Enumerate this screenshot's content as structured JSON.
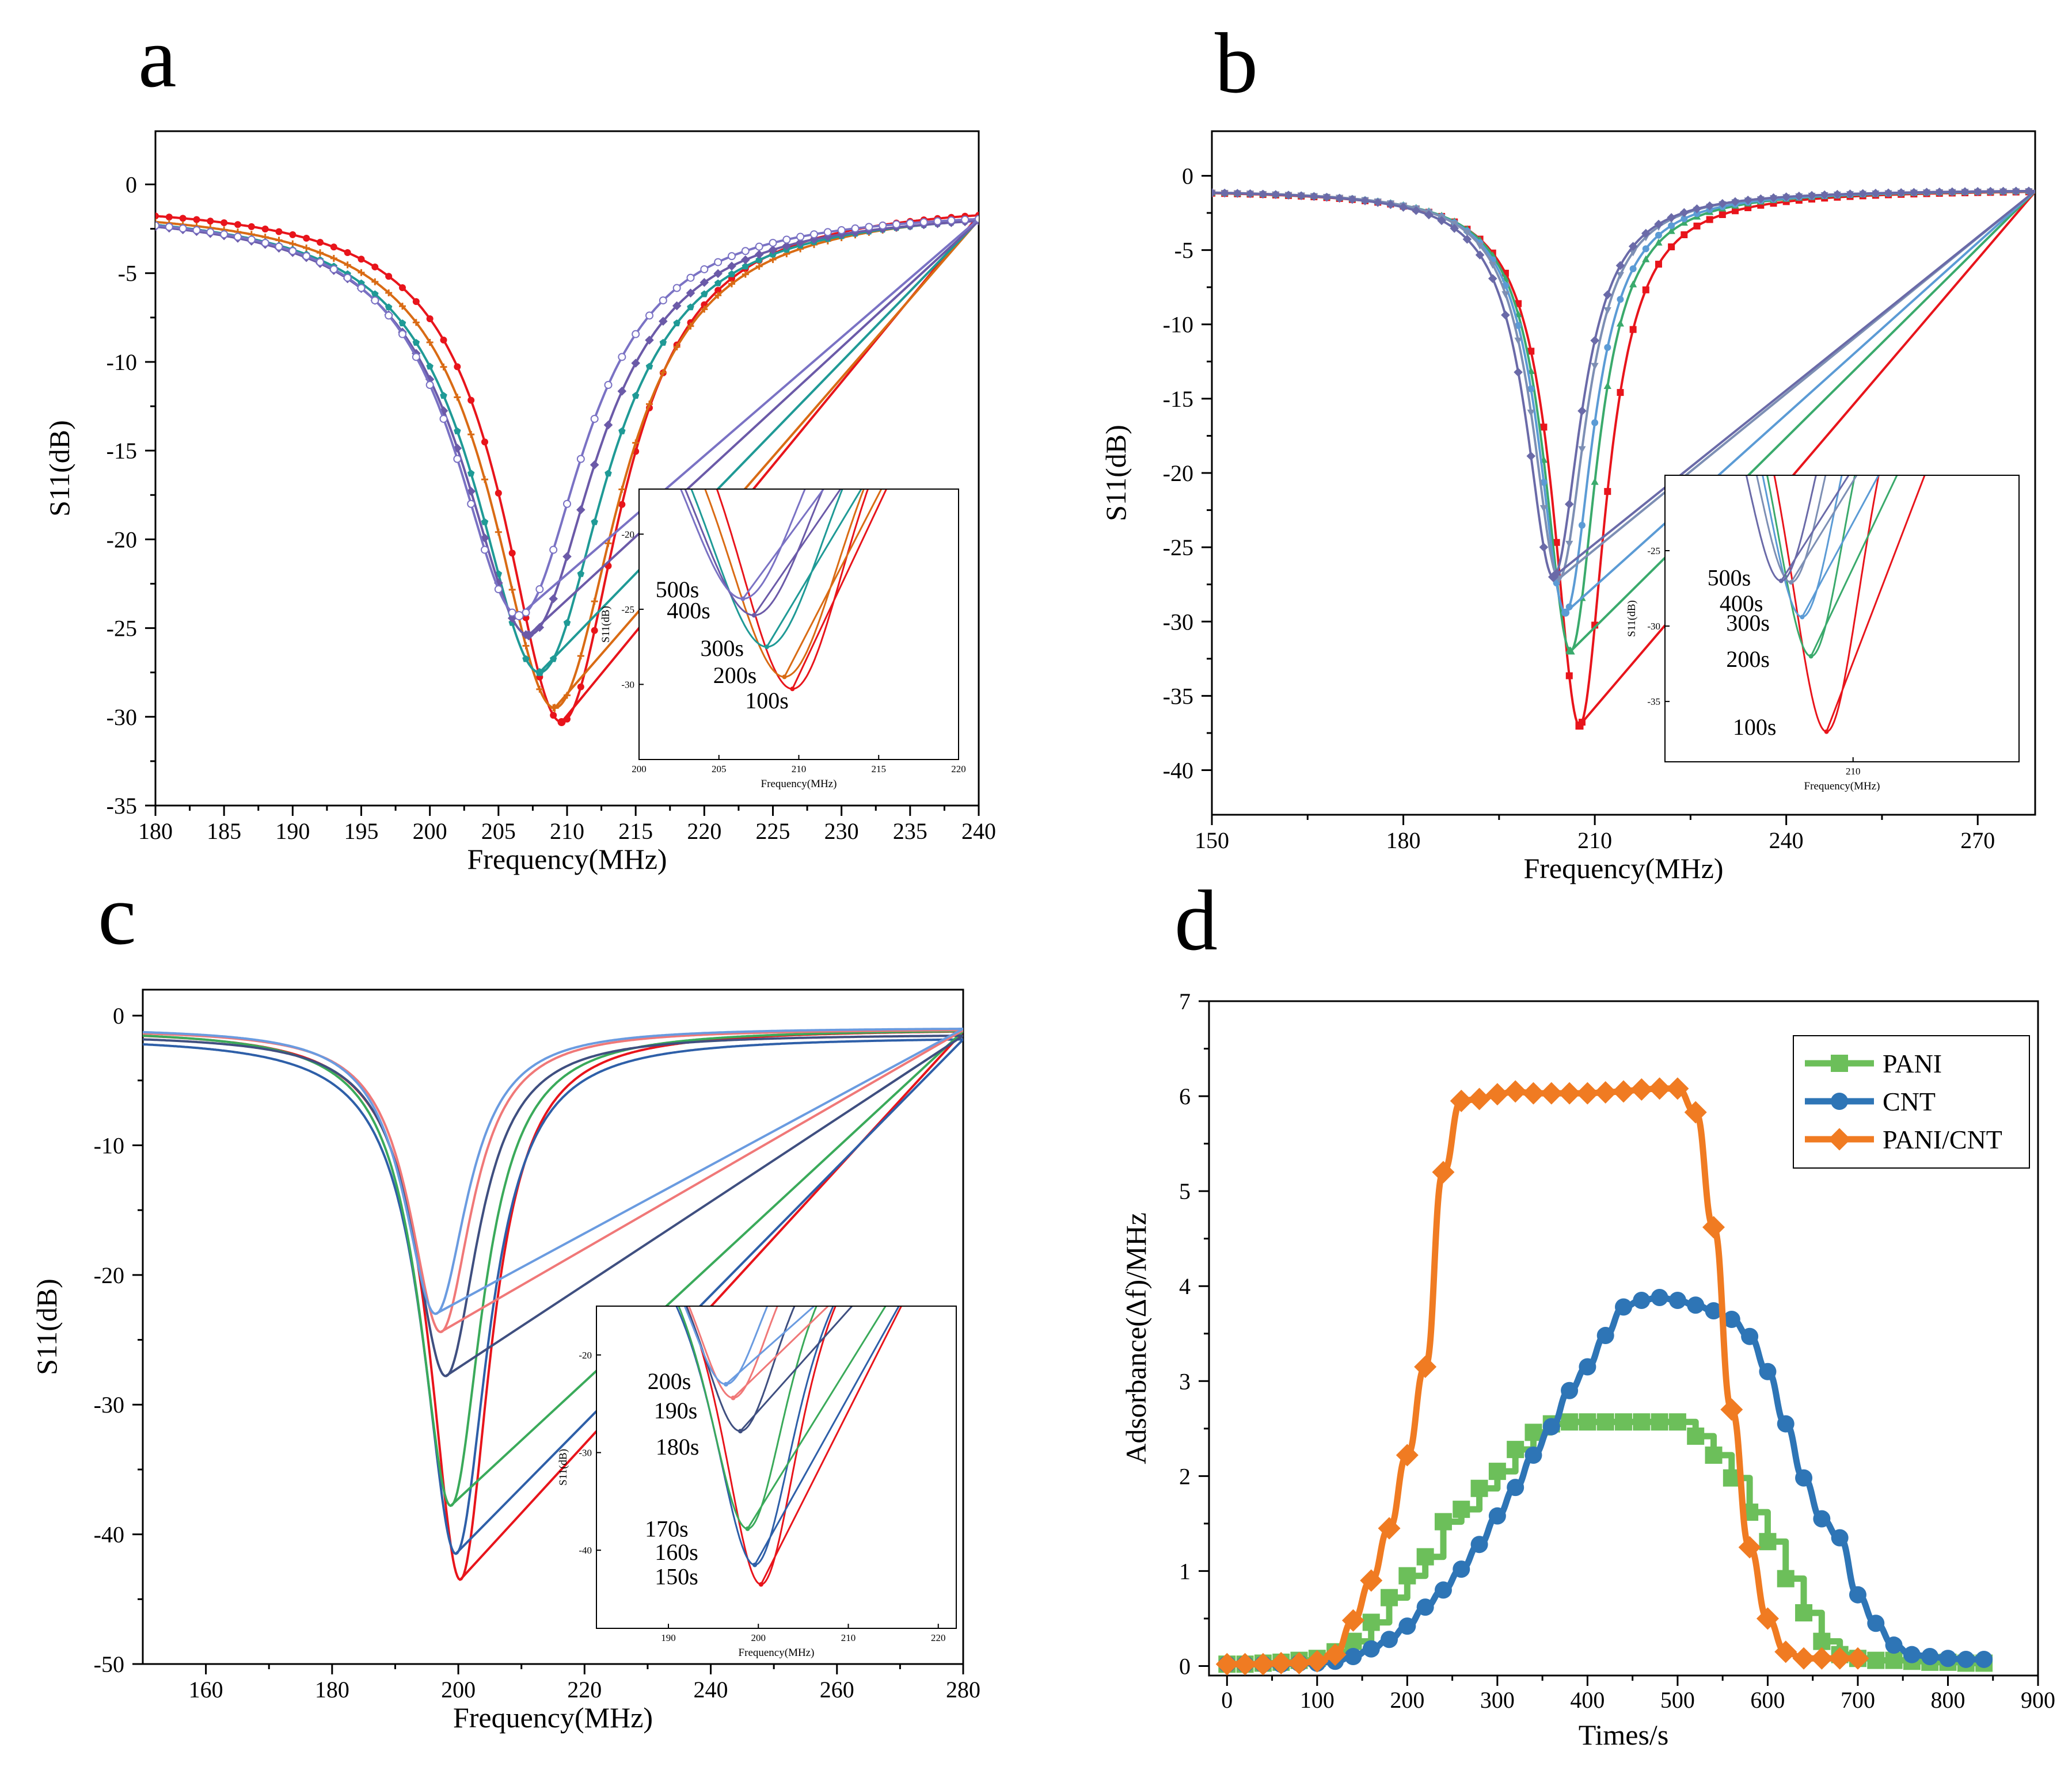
{
  "chart_data": [
    {
      "id": "a",
      "panel_label": "a",
      "type": "line",
      "xlabel": "Frequency(MHz)",
      "ylabel": "S11(dB)",
      "xlim": [
        180,
        240
      ],
      "ylim": [
        -35,
        3
      ],
      "xticks": [
        180,
        185,
        190,
        195,
        200,
        205,
        210,
        215,
        220,
        225,
        230,
        235,
        240
      ],
      "yticks": [
        0,
        -5,
        -10,
        -15,
        -20,
        -25,
        -30,
        -35
      ],
      "series": [
        {
          "name": "100s",
          "color": "#e8141b",
          "marker": "circle",
          "f0": 209.6,
          "min_db": -30.3,
          "half_width": 5.2,
          "baseline": -0.9
        },
        {
          "name": "200s",
          "color": "#d96b14",
          "marker": "plus",
          "f0": 209.1,
          "min_db": -29.5,
          "half_width": 5.6,
          "baseline": -1.1
        },
        {
          "name": "300s",
          "color": "#1f9a96",
          "marker": "pentagon",
          "f0": 208.0,
          "min_db": -27.5,
          "half_width": 5.8,
          "baseline": -1.2
        },
        {
          "name": "400s",
          "color": "#6b5aa8",
          "marker": "diamond",
          "f0": 207.2,
          "min_db": -25.4,
          "half_width": 5.9,
          "baseline": -1.3
        },
        {
          "name": "500s",
          "color": "#7a72c4",
          "marker": "circle-open",
          "f0": 206.5,
          "min_db": -24.3,
          "half_width": 5.7,
          "baseline": -1.3
        }
      ],
      "inset": {
        "xlabel": "Frequency(MHz)",
        "ylabel": "S11(dB)",
        "xlim": [
          200,
          220
        ],
        "ylim": [
          -35,
          -17
        ],
        "xticks": [
          200,
          205,
          210,
          215,
          220
        ],
        "yticks": [
          -20,
          -25,
          -30
        ],
        "annotations": [
          {
            "text": "500s",
            "x": 202.4,
            "y": -24.2
          },
          {
            "text": "400s",
            "x": 203.1,
            "y": -25.6
          },
          {
            "text": "300s",
            "x": 205.2,
            "y": -28.1
          },
          {
            "text": "200s",
            "x": 206.0,
            "y": -29.9
          },
          {
            "text": "100s",
            "x": 208.0,
            "y": -31.6
          }
        ]
      }
    },
    {
      "id": "b",
      "panel_label": "b",
      "type": "line",
      "xlabel": "Frequency(MHz)",
      "ylabel": "S11(dB)",
      "xlim": [
        150,
        279
      ],
      "ylim": [
        -43,
        3
      ],
      "xticks": [
        150,
        180,
        210,
        240,
        270
      ],
      "yticks": [
        0,
        -5,
        -10,
        -15,
        -20,
        -25,
        -30,
        -35,
        -40
      ],
      "series": [
        {
          "name": "100s",
          "color": "#e8141b",
          "marker": "square",
          "f0": 207.6,
          "min_db": -37.0,
          "half_width": 5.0,
          "baseline": -0.9
        },
        {
          "name": "200s",
          "color": "#3aaa6c",
          "marker": "triangle",
          "f0": 206.2,
          "min_db": -32.0,
          "half_width": 5.0,
          "baseline": -0.9
        },
        {
          "name": "300s",
          "color": "#5b9bd5",
          "marker": "circle",
          "f0": 205.4,
          "min_db": -29.4,
          "half_width": 5.1,
          "baseline": -0.9
        },
        {
          "name": "400s",
          "color": "#7d8fb4",
          "marker": "triangle-down",
          "f0": 204.4,
          "min_db": -27.1,
          "half_width": 5.1,
          "baseline": -0.9
        },
        {
          "name": "500s",
          "color": "#6a6aa8",
          "marker": "diamond",
          "f0": 203.5,
          "min_db": -27.0,
          "half_width": 5.2,
          "baseline": -0.9
        }
      ],
      "inset": {
        "xlabel": "Frequency(MHz)",
        "ylabel": "S11(dB)",
        "xlim": [
          193,
          225
        ],
        "ylim": [
          -39,
          -20
        ],
        "xticks": [
          210
        ],
        "yticks": [
          -25,
          -30,
          -35
        ],
        "annotations": [
          {
            "text": "500s",
            "x": 198.8,
            "y": -27.3
          },
          {
            "text": "400s",
            "x": 199.9,
            "y": -29.0
          },
          {
            "text": "300s",
            "x": 200.5,
            "y": -30.3
          },
          {
            "text": "200s",
            "x": 200.5,
            "y": -32.7
          },
          {
            "text": "100s",
            "x": 201.1,
            "y": -37.2
          }
        ]
      }
    },
    {
      "id": "c",
      "panel_label": "c",
      "type": "line",
      "xlabel": "Frequency(MHz)",
      "ylabel": "S11(dB)",
      "xlim": [
        150,
        280
      ],
      "ylim": [
        -50,
        2
      ],
      "xticks": [
        160,
        180,
        200,
        220,
        240,
        260,
        280
      ],
      "yticks": [
        0,
        -10,
        -20,
        -30,
        -40,
        -50
      ],
      "series": [
        {
          "name": "150s",
          "color": "#e8141b",
          "f0": 200.3,
          "min_db": -43.5,
          "half_width": 5.8,
          "baseline": -1.0
        },
        {
          "name": "160s",
          "color": "#2e5fa8",
          "f0": 199.6,
          "min_db": -41.5,
          "half_width": 6.2,
          "baseline": -1.6
        },
        {
          "name": "170s",
          "color": "#3aaa5a",
          "f0": 198.8,
          "min_db": -37.8,
          "half_width": 6.0,
          "baseline": -1.0
        },
        {
          "name": "180s",
          "color": "#3f4f80",
          "f0": 198.0,
          "min_db": -27.8,
          "half_width": 6.2,
          "baseline": -1.4
        },
        {
          "name": "190s",
          "color": "#f07878",
          "f0": 197.2,
          "min_db": -24.4,
          "half_width": 6.0,
          "baseline": -1.0
        },
        {
          "name": "200s",
          "color": "#6a9be0",
          "f0": 196.4,
          "min_db": -23.0,
          "half_width": 6.1,
          "baseline": -0.9
        }
      ],
      "inset": {
        "xlabel": "Frequency(MHz)",
        "ylabel": "S11(dB)",
        "xlim": [
          182,
          222
        ],
        "ylim": [
          -48,
          -15
        ],
        "xticks": [
          190,
          200,
          210,
          220
        ],
        "yticks": [
          -20,
          -30,
          -40
        ],
        "annotations": [
          {
            "text": "200s",
            "x": 190.1,
            "y": -23.5
          },
          {
            "text": "190s",
            "x": 190.8,
            "y": -26.5
          },
          {
            "text": "180s",
            "x": 191.0,
            "y": -30.2
          },
          {
            "text": "170s",
            "x": 189.8,
            "y": -38.6
          },
          {
            "text": "160s",
            "x": 190.9,
            "y": -41.0
          },
          {
            "text": "150s",
            "x": 190.9,
            "y": -43.5
          }
        ]
      }
    },
    {
      "id": "d",
      "panel_label": "d",
      "type": "line",
      "xlabel": "Times/s",
      "ylabel": "Adsorbance(Δf)/MHz",
      "xlim": [
        -20,
        900
      ],
      "ylim": [
        -0.1,
        7
      ],
      "xticks": [
        0,
        100,
        200,
        300,
        400,
        500,
        600,
        700,
        800,
        900
      ],
      "yticks": [
        0,
        1,
        2,
        3,
        4,
        5,
        6,
        7
      ],
      "legend_position": "top-right",
      "series": [
        {
          "name": "PANI",
          "color": "#6cbf5a",
          "marker": "square",
          "step": true,
          "x": [
            0,
            20,
            40,
            60,
            80,
            100,
            120,
            140,
            160,
            180,
            200,
            220,
            240,
            260,
            280,
            300,
            320,
            340,
            360,
            380,
            400,
            420,
            440,
            460,
            480,
            500,
            520,
            540,
            560,
            580,
            600,
            620,
            640,
            660,
            680,
            700,
            720,
            740,
            760,
            780,
            800,
            820,
            840
          ],
          "y": [
            0.02,
            0.02,
            0.03,
            0.04,
            0.06,
            0.08,
            0.15,
            0.26,
            0.46,
            0.72,
            0.95,
            1.15,
            1.52,
            1.65,
            1.87,
            2.05,
            2.28,
            2.46,
            2.55,
            2.57,
            2.57,
            2.57,
            2.57,
            2.57,
            2.57,
            2.57,
            2.42,
            2.22,
            1.98,
            1.62,
            1.31,
            0.92,
            0.56,
            0.26,
            0.12,
            0.08,
            0.06,
            0.06,
            0.05,
            0.04,
            0.04,
            0.03,
            0.03
          ]
        },
        {
          "name": "CNT",
          "color": "#2e75b6",
          "marker": "circle",
          "x": [
            0,
            20,
            40,
            60,
            80,
            100,
            120,
            140,
            160,
            180,
            200,
            220,
            240,
            260,
            280,
            300,
            320,
            340,
            360,
            380,
            400,
            420,
            440,
            460,
            480,
            500,
            520,
            540,
            560,
            580,
            600,
            620,
            640,
            660,
            680,
            700,
            720,
            740,
            760,
            780,
            800,
            820,
            840
          ],
          "y": [
            0.02,
            0.02,
            0.02,
            0.02,
            0.03,
            0.03,
            0.05,
            0.1,
            0.18,
            0.28,
            0.42,
            0.62,
            0.8,
            1.02,
            1.28,
            1.58,
            1.88,
            2.22,
            2.52,
            2.9,
            3.15,
            3.48,
            3.78,
            3.85,
            3.88,
            3.85,
            3.8,
            3.74,
            3.65,
            3.47,
            3.1,
            2.55,
            1.98,
            1.55,
            1.35,
            0.75,
            0.45,
            0.22,
            0.12,
            0.1,
            0.08,
            0.07,
            0.07
          ]
        },
        {
          "name": "PANI/CNT",
          "color": "#f07b22",
          "marker": "diamond",
          "x": [
            0,
            20,
            40,
            60,
            80,
            100,
            120,
            140,
            160,
            180,
            200,
            220,
            240,
            260,
            280,
            300,
            320,
            340,
            360,
            380,
            400,
            420,
            440,
            460,
            480,
            500,
            520,
            540,
            560,
            580,
            600,
            620,
            640,
            660,
            680,
            700
          ],
          "y": [
            0.02,
            0.02,
            0.02,
            0.03,
            0.03,
            0.05,
            0.12,
            0.48,
            0.9,
            1.45,
            2.22,
            3.15,
            5.2,
            5.95,
            5.97,
            6.02,
            6.05,
            6.03,
            6.03,
            6.03,
            6.03,
            6.04,
            6.05,
            6.07,
            6.08,
            6.08,
            5.83,
            4.62,
            2.7,
            1.25,
            0.5,
            0.15,
            0.08,
            0.08,
            0.08,
            0.08
          ]
        }
      ]
    }
  ]
}
